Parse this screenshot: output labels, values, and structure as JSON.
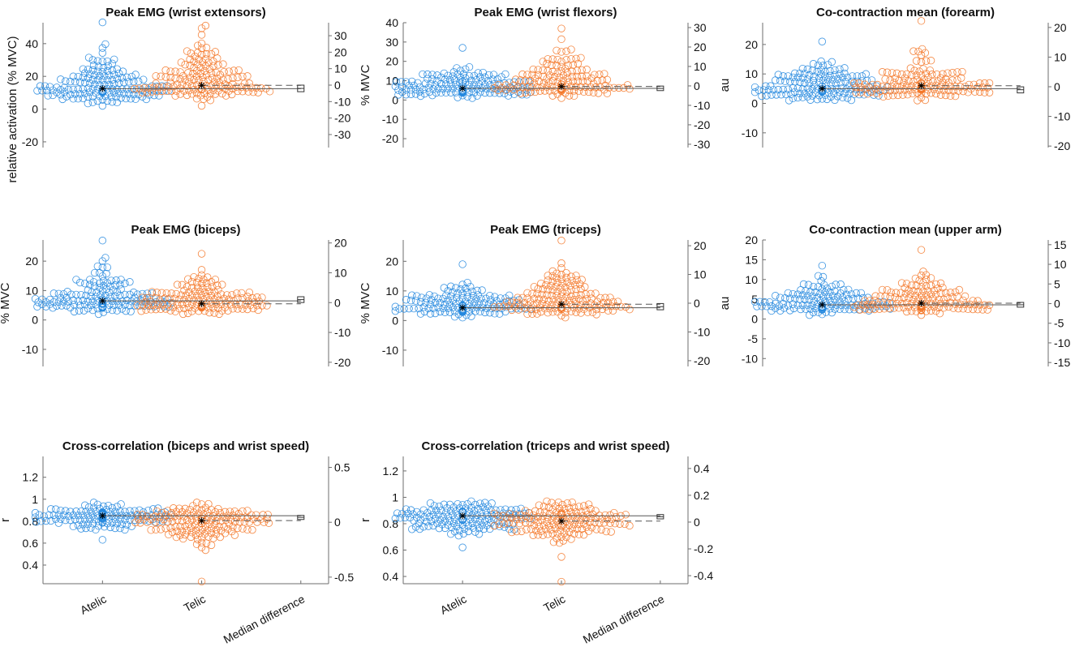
{
  "colors": {
    "atelic": "#2789df",
    "telic": "#f4792b",
    "axis": "#6e6e6e",
    "median_line": "#555555"
  },
  "categories": [
    "Atelic",
    "Telic",
    "Median difference"
  ],
  "chart_data": [
    {
      "type": "scatter",
      "subtype": "gardner-altman swarm",
      "title": "Peak EMG (wrist extensors)",
      "ylabel": "relative activation (% MVC)",
      "xlim": [
        0.4,
        3.28
      ],
      "left_axis": {
        "ylim": [
          -23.5,
          52.8
        ],
        "ticks": [
          "-20",
          "0",
          "20",
          "40"
        ]
      },
      "right_axis": {
        "ylim": [
          -37.9,
          37.9
        ],
        "ticks": [
          "-30",
          "-20",
          "-10",
          "0",
          "10",
          "20",
          "30"
        ]
      },
      "groups": [
        {
          "name": "Atelic",
          "median": 12.5,
          "min": 2,
          "max": 53,
          "spread_up": 9,
          "spread_down": 4
        },
        {
          "name": "Telic",
          "median": 14.5,
          "min": 2,
          "max": 51,
          "spread_up": 11,
          "spread_down": 4.5
        }
      ],
      "median_difference": {
        "value": -2,
        "ci": [
          -3.5,
          -0.5
        ]
      },
      "show_xlabels": false
    },
    {
      "type": "scatter",
      "subtype": "gardner-altman swarm",
      "title": "Peak EMG (wrist flexors)",
      "ylabel": "% MVC",
      "xlim": [
        0.4,
        3.28
      ],
      "left_axis": {
        "ylim": [
          -24.6,
          40
        ],
        "ticks": [
          "-20",
          "-10",
          "0",
          "10",
          "20",
          "30",
          "40"
        ]
      },
      "right_axis": {
        "ylim": [
          -31.7,
          32.5
        ],
        "ticks": [
          "-30",
          "-20",
          "-10",
          "0",
          "10",
          "20",
          "30"
        ]
      },
      "groups": [
        {
          "name": "Atelic",
          "median": 6,
          "min": 1,
          "max": 27,
          "spread_up": 5,
          "spread_down": 2
        },
        {
          "name": "Telic",
          "median": 7,
          "min": 1,
          "max": 37,
          "spread_up": 8,
          "spread_down": 2.2
        }
      ],
      "median_difference": {
        "value": -1.3,
        "ci": [
          -2,
          -0.5
        ]
      },
      "show_xlabels": false
    },
    {
      "type": "scatter",
      "subtype": "gardner-altman swarm",
      "title": "Co-contraction mean (forearm)",
      "ylabel": "au",
      "xlim": [
        0.4,
        3.28
      ],
      "left_axis": {
        "ylim": [
          -15,
          27.4
        ],
        "ticks": [
          "-10",
          "0",
          "10",
          "20"
        ]
      },
      "right_axis": {
        "ylim": [
          -20.5,
          21.6
        ],
        "ticks": [
          "-20",
          "-10",
          "0",
          "10",
          "20"
        ]
      },
      "groups": [
        {
          "name": "Atelic",
          "median": 5,
          "min": 1,
          "max": 21,
          "spread_up": 4,
          "spread_down": 1.6
        },
        {
          "name": "Telic",
          "median": 6,
          "min": 1,
          "max": 28,
          "spread_up": 4.5,
          "spread_down": 2
        }
      ],
      "median_difference": {
        "value": -1,
        "ci": [
          -1.8,
          -0.3
        ]
      },
      "show_xlabels": false
    },
    {
      "type": "scatter",
      "subtype": "gardner-altman swarm",
      "title": "Peak EMG (biceps)",
      "ylabel": "% MVC",
      "xlim": [
        0.4,
        3.28
      ],
      "left_axis": {
        "ylim": [
          -15.8,
          27.2
        ],
        "ticks": [
          "-10",
          "0",
          "10",
          "20"
        ]
      },
      "right_axis": {
        "ylim": [
          -21.4,
          21
        ],
        "ticks": [
          "-20",
          "-10",
          "0",
          "10",
          "20"
        ]
      },
      "groups": [
        {
          "name": "Atelic",
          "median": 6.5,
          "min": 2,
          "max": 27,
          "spread_up": 5,
          "spread_down": 1.8
        },
        {
          "name": "Telic",
          "median": 5.5,
          "min": 2,
          "max": 22.5,
          "spread_up": 4.5,
          "spread_down": 1.5
        }
      ],
      "median_difference": {
        "value": 1,
        "ci": [
          0.3,
          1.7
        ]
      },
      "show_xlabels": false
    },
    {
      "type": "scatter",
      "subtype": "gardner-altman swarm",
      "title": "Peak EMG (triceps)",
      "ylabel": "% MVC",
      "xlim": [
        0.4,
        3.28
      ],
      "left_axis": {
        "ylim": [
          -15.5,
          27.2
        ],
        "ticks": [
          "-10",
          "0",
          "10",
          "20"
        ]
      },
      "right_axis": {
        "ylim": [
          -22,
          22
        ],
        "ticks": [
          "-20",
          "-10",
          "0",
          "10",
          "20"
        ]
      },
      "groups": [
        {
          "name": "Atelic",
          "median": 4.3,
          "min": 1,
          "max": 19,
          "spread_up": 3.5,
          "spread_down": 1.2
        },
        {
          "name": "Telic",
          "median": 5.5,
          "min": 1,
          "max": 27,
          "spread_up": 6,
          "spread_down": 1.8
        }
      ],
      "median_difference": {
        "value": -1.2,
        "ci": [
          -2,
          -0.4
        ]
      },
      "show_xlabels": false
    },
    {
      "type": "scatter",
      "subtype": "gardner-altman swarm",
      "title": "Co-contraction mean (upper arm)",
      "ylabel": "au",
      "xlim": [
        0.4,
        3.28
      ],
      "left_axis": {
        "ylim": [
          -12,
          20
        ],
        "ticks": [
          "-10",
          "-5",
          "0",
          "5",
          "10",
          "15",
          "20"
        ]
      },
      "right_axis": {
        "ylim": [
          -16,
          16.2
        ],
        "ticks": [
          "-15",
          "-10",
          "-5",
          "0",
          "5",
          "10",
          "15"
        ]
      },
      "groups": [
        {
          "name": "Atelic",
          "median": 3.6,
          "min": 1,
          "max": 13.5,
          "spread_up": 3,
          "spread_down": 1
        },
        {
          "name": "Telic",
          "median": 4,
          "min": 1,
          "max": 17.5,
          "spread_up": 3,
          "spread_down": 1.2
        }
      ],
      "median_difference": {
        "value": -0.3,
        "ci": [
          -0.7,
          0.1
        ]
      },
      "show_xlabels": false
    },
    {
      "type": "scatter",
      "subtype": "gardner-altman swarm",
      "title": "Cross-correlation (biceps and wrist speed)",
      "ylabel": "r",
      "xlim": [
        0.4,
        3.28
      ],
      "left_axis": {
        "ylim": [
          0.23,
          1.39
        ],
        "ticks": [
          "0.4",
          "0.6",
          "0.8",
          "1",
          "1.2"
        ]
      },
      "right_axis": {
        "ylim": [
          -0.56,
          0.6
        ],
        "ticks": [
          "-0.5",
          "0",
          "0.5"
        ]
      },
      "groups": [
        {
          "name": "Atelic",
          "median": 0.85,
          "min": 0.63,
          "max": 0.97,
          "spread_up": 0.05,
          "spread_down": 0.06
        },
        {
          "name": "Telic",
          "median": 0.805,
          "min": 0.25,
          "max": 0.97,
          "spread_up": 0.07,
          "spread_down": 0.09
        }
      ],
      "median_difference": {
        "value": 0.045,
        "ci": [
          0.035,
          0.055
        ]
      },
      "show_xlabels": true
    },
    {
      "type": "scatter",
      "subtype": "gardner-altman swarm",
      "title": "Cross-correlation (triceps and wrist speed)",
      "ylabel": "r",
      "xlim": [
        0.4,
        3.28
      ],
      "left_axis": {
        "ylim": [
          0.345,
          1.31
        ],
        "ticks": [
          "0.4",
          "0.6",
          "0.8",
          "1",
          "1.2"
        ]
      },
      "right_axis": {
        "ylim": [
          -0.46,
          0.49
        ],
        "ticks": [
          "-0.4",
          "-0.2",
          "0",
          "0.2",
          "0.4"
        ]
      },
      "groups": [
        {
          "name": "Atelic",
          "median": 0.86,
          "min": 0.62,
          "max": 0.97,
          "spread_up": 0.05,
          "spread_down": 0.07
        },
        {
          "name": "Telic",
          "median": 0.82,
          "min": 0.36,
          "max": 0.97,
          "spread_up": 0.07,
          "spread_down": 0.08
        }
      ],
      "median_difference": {
        "value": 0.04,
        "ci": [
          0.03,
          0.05
        ]
      },
      "show_xlabels": true
    }
  ]
}
